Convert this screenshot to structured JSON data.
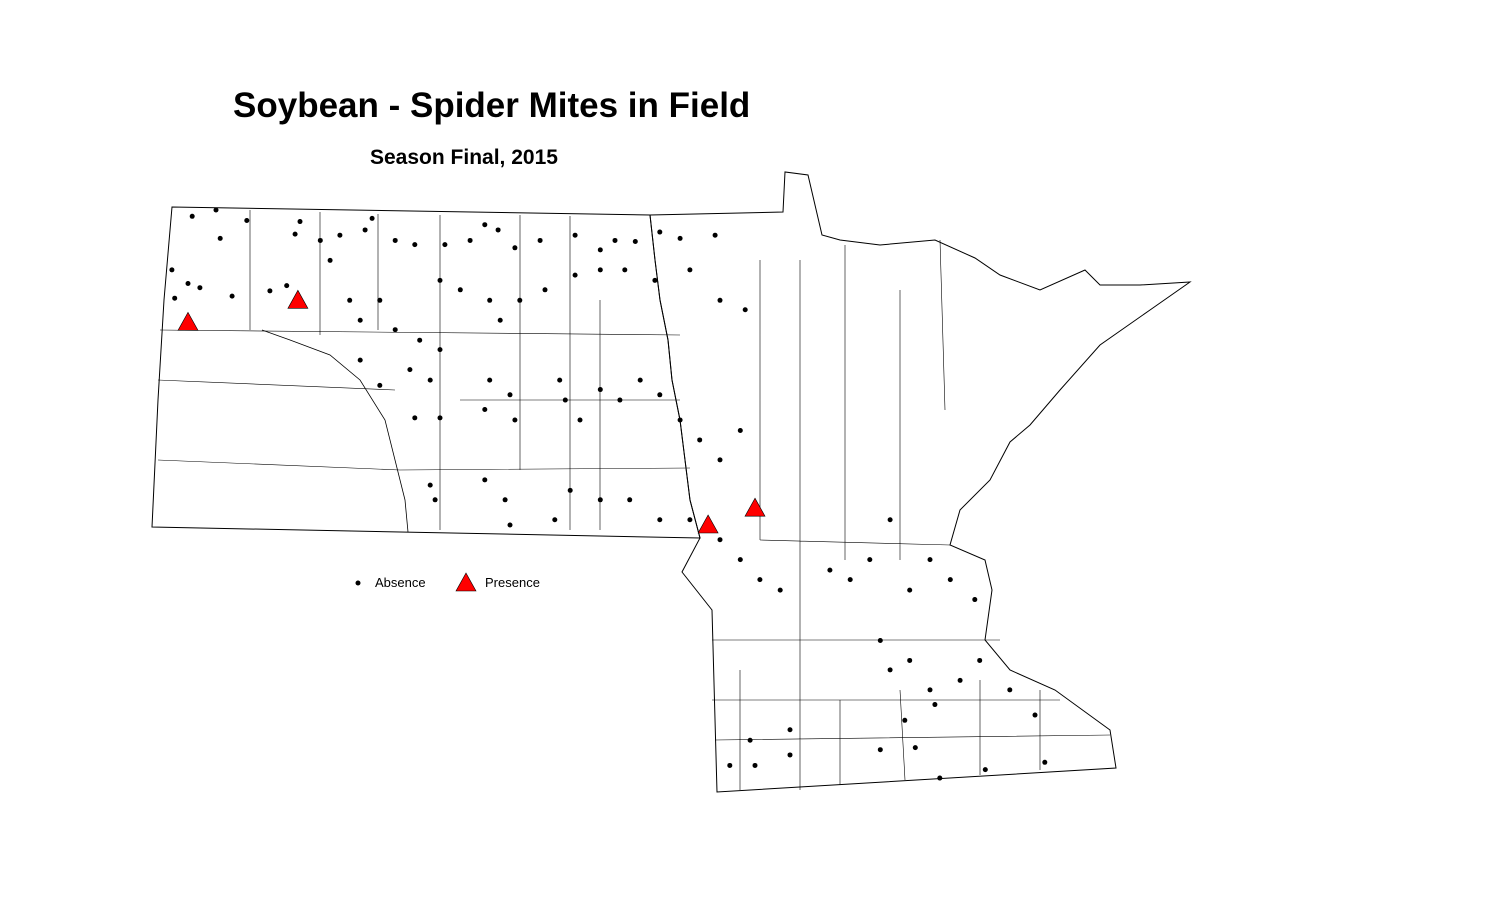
{
  "title": "Soybean - Spider Mites in Field",
  "subtitle": "Season Final, 2015",
  "legend": {
    "absence_label": "Absence",
    "presence_label": "Presence"
  },
  "colors": {
    "absence": "#000000",
    "presence": "#ff0000",
    "boundary": "#000000"
  },
  "icons": {
    "absence": "black-dot",
    "presence": "red-triangle"
  },
  "map_data": {
    "presence": [
      [
        -103.65,
        47.93
      ],
      [
        -102.08,
        48.14
      ],
      [
        -96.22,
        46.0
      ],
      [
        -95.55,
        46.16
      ]
    ],
    "absence": [
      [
        -103.59,
        48.94
      ],
      [
        -103.25,
        49.0
      ],
      [
        -103.19,
        48.73
      ],
      [
        -102.81,
        48.9
      ],
      [
        -103.88,
        48.43
      ],
      [
        -103.84,
        48.16
      ],
      [
        -103.65,
        48.3
      ],
      [
        -103.48,
        48.26
      ],
      [
        -103.02,
        48.18
      ],
      [
        -102.48,
        48.23
      ],
      [
        -102.24,
        48.28
      ],
      [
        -102.12,
        48.77
      ],
      [
        -102.05,
        48.89
      ],
      [
        -101.76,
        48.71
      ],
      [
        -101.48,
        48.76
      ],
      [
        -101.62,
        48.52
      ],
      [
        -101.12,
        48.81
      ],
      [
        -101.02,
        48.92
      ],
      [
        -100.69,
        48.71
      ],
      [
        -100.41,
        48.67
      ],
      [
        -99.98,
        48.67
      ],
      [
        -99.62,
        48.71
      ],
      [
        -99.41,
        48.86
      ],
      [
        -99.22,
        48.81
      ],
      [
        -98.98,
        48.64
      ],
      [
        -98.62,
        48.71
      ],
      [
        -98.12,
        48.76
      ],
      [
        -97.76,
        48.62
      ],
      [
        -97.55,
        48.71
      ],
      [
        -97.26,
        48.7
      ],
      [
        -96.91,
        48.79
      ],
      [
        -96.62,
        48.73
      ],
      [
        -96.12,
        48.76
      ],
      [
        -100.05,
        48.33
      ],
      [
        -99.76,
        48.24
      ],
      [
        -99.34,
        48.14
      ],
      [
        -99.19,
        47.95
      ],
      [
        -98.91,
        48.14
      ],
      [
        -98.55,
        48.24
      ],
      [
        -98.12,
        48.38
      ],
      [
        -97.76,
        48.43
      ],
      [
        -97.41,
        48.43
      ],
      [
        -96.98,
        48.33
      ],
      [
        -96.48,
        48.43
      ],
      [
        -96.05,
        48.14
      ],
      [
        -95.69,
        48.05
      ],
      [
        -101.34,
        48.14
      ],
      [
        -101.19,
        47.95
      ],
      [
        -100.91,
        48.14
      ],
      [
        -100.69,
        47.86
      ],
      [
        -100.34,
        47.76
      ],
      [
        -100.05,
        47.67
      ],
      [
        -101.19,
        47.57
      ],
      [
        -100.91,
        47.33
      ],
      [
        -100.48,
        47.48
      ],
      [
        -100.19,
        47.38
      ],
      [
        -99.34,
        47.38
      ],
      [
        -99.05,
        47.24
      ],
      [
        -98.98,
        47.0
      ],
      [
        -99.41,
        47.1
      ],
      [
        -98.34,
        47.38
      ],
      [
        -98.26,
        47.19
      ],
      [
        -98.05,
        47.0
      ],
      [
        -97.76,
        47.29
      ],
      [
        -97.48,
        47.19
      ],
      [
        -97.19,
        47.38
      ],
      [
        -96.91,
        47.24
      ],
      [
        -96.62,
        47.0
      ],
      [
        -96.34,
        46.81
      ],
      [
        -96.05,
        46.62
      ],
      [
        -95.76,
        46.9
      ],
      [
        -100.41,
        47.02
      ],
      [
        -100.05,
        47.02
      ],
      [
        -100.19,
        46.38
      ],
      [
        -100.12,
        46.24
      ],
      [
        -99.41,
        46.43
      ],
      [
        -99.12,
        46.24
      ],
      [
        -99.05,
        46.0
      ],
      [
        -98.41,
        46.05
      ],
      [
        -98.19,
        46.33
      ],
      [
        -97.76,
        46.24
      ],
      [
        -97.34,
        46.24
      ],
      [
        -96.91,
        46.05
      ],
      [
        -96.48,
        46.05
      ],
      [
        -96.05,
        45.86
      ],
      [
        -95.76,
        45.67
      ],
      [
        -95.48,
        45.48
      ],
      [
        -95.19,
        45.38
      ],
      [
        -94.48,
        45.57
      ],
      [
        -94.19,
        45.48
      ],
      [
        -93.91,
        45.67
      ],
      [
        -93.62,
        46.05
      ],
      [
        -93.34,
        45.38
      ],
      [
        -93.05,
        45.67
      ],
      [
        -92.76,
        45.48
      ],
      [
        -92.41,
        45.29
      ],
      [
        -93.76,
        44.9
      ],
      [
        -93.62,
        44.62
      ],
      [
        -93.34,
        44.71
      ],
      [
        -93.05,
        44.43
      ],
      [
        -92.62,
        44.52
      ],
      [
        -92.34,
        44.71
      ],
      [
        -93.41,
        44.14
      ],
      [
        -92.98,
        44.29
      ],
      [
        -91.91,
        44.43
      ],
      [
        -91.55,
        44.19
      ],
      [
        -95.62,
        43.95
      ],
      [
        -95.05,
        44.05
      ],
      [
        -95.05,
        43.81
      ],
      [
        -95.91,
        43.71
      ],
      [
        -95.55,
        43.71
      ],
      [
        -93.76,
        43.86
      ],
      [
        -93.26,
        43.88
      ],
      [
        -92.91,
        43.59
      ],
      [
        -92.26,
        43.67
      ],
      [
        -91.41,
        43.74
      ]
    ]
  }
}
